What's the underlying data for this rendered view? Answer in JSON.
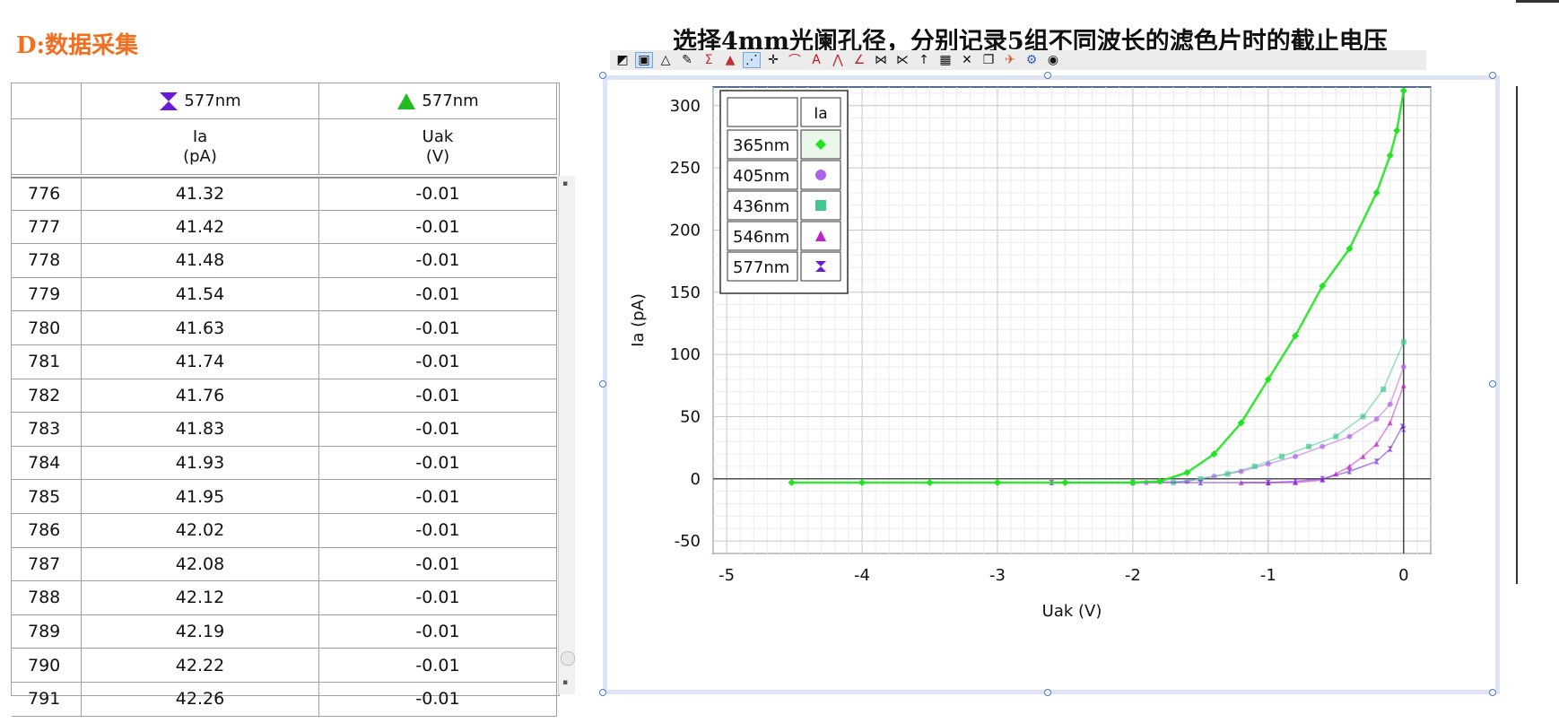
{
  "section_title": "D:数据采集",
  "page_heading": "选择4mm光阑孔径，分别记录5组不同波长的滤色片时的截止电压",
  "table": {
    "headers": [
      {
        "series": "577nm",
        "icon": "hourglass-marker-icon",
        "color": "#6a1bd8",
        "name": "Ia",
        "unit": "(pA)"
      },
      {
        "series": "577nm",
        "icon": "triangle-marker-icon",
        "color": "#22bb22",
        "name": "Uak",
        "unit": "(V)"
      }
    ],
    "rows": [
      [
        "776",
        "41.32",
        "-0.01"
      ],
      [
        "777",
        "41.42",
        "-0.01"
      ],
      [
        "778",
        "41.48",
        "-0.01"
      ],
      [
        "779",
        "41.54",
        "-0.01"
      ],
      [
        "780",
        "41.63",
        "-0.01"
      ],
      [
        "781",
        "41.74",
        "-0.01"
      ],
      [
        "782",
        "41.76",
        "-0.01"
      ],
      [
        "783",
        "41.83",
        "-0.01"
      ],
      [
        "784",
        "41.93",
        "-0.01"
      ],
      [
        "785",
        "41.95",
        "-0.01"
      ],
      [
        "786",
        "42.02",
        "-0.01"
      ],
      [
        "787",
        "42.08",
        "-0.01"
      ],
      [
        "788",
        "42.12",
        "-0.01"
      ],
      [
        "789",
        "42.19",
        "-0.01"
      ],
      [
        "790",
        "42.22",
        "-0.01"
      ],
      [
        "791",
        "42.26",
        "-0.01"
      ]
    ]
  },
  "toolbar_icons": [
    "chart-options-icon",
    "layout-icon",
    "color-icon",
    "pencil-icon",
    "sigma-icon",
    "warning-icon",
    "scatter-icon",
    "crosshair-icon",
    "curve-fit-icon",
    "text-annotation-icon",
    "zigzag-icon",
    "tangent-icon",
    "x-scale-icon",
    "y-scale-icon",
    "up-arrow-icon",
    "grid-icon",
    "delete-icon",
    "copy-icon",
    "pin-icon",
    "gear-icon",
    "eye-icon"
  ],
  "chart_data": {
    "type": "scatter",
    "xlabel": "Uak (V)",
    "ylabel": "Ia (pA)",
    "xlim": [
      -5.1,
      0.2
    ],
    "ylim": [
      -60,
      315
    ],
    "xticks": [
      -5,
      -4,
      -3,
      -2,
      -1,
      0
    ],
    "yticks": [
      -50,
      0,
      50,
      100,
      150,
      200,
      250,
      300
    ],
    "legend": {
      "placement": "top-left",
      "header": "Ia"
    },
    "series": [
      {
        "name": "365nm",
        "color": "#1ee61e",
        "marker": "diamond",
        "x": [
          -4.52,
          -4.0,
          -3.5,
          -3.0,
          -2.5,
          -2.0,
          -1.8,
          -1.6,
          -1.4,
          -1.2,
          -1.0,
          -0.8,
          -0.6,
          -0.4,
          -0.2,
          -0.1,
          -0.05,
          0.0
        ],
        "y": [
          -3,
          -3,
          -3,
          -3,
          -3,
          -3,
          -2,
          5,
          20,
          45,
          80,
          115,
          155,
          185,
          230,
          260,
          280,
          312
        ]
      },
      {
        "name": "405nm",
        "color": "#b060e8",
        "marker": "circle",
        "x": [
          -1.9,
          -1.6,
          -1.4,
          -1.2,
          -1.0,
          -0.8,
          -0.6,
          -0.4,
          -0.2,
          -0.1,
          0.0
        ],
        "y": [
          -3,
          -2,
          2,
          6,
          12,
          18,
          26,
          34,
          48,
          60,
          90
        ]
      },
      {
        "name": "436nm",
        "color": "#40c890",
        "marker": "square",
        "x": [
          -1.7,
          -1.5,
          -1.3,
          -1.1,
          -0.9,
          -0.7,
          -0.5,
          -0.3,
          -0.15,
          0.0
        ],
        "y": [
          -3,
          0,
          4,
          10,
          18,
          26,
          34,
          50,
          72,
          110
        ]
      },
      {
        "name": "546nm",
        "color": "#c020c8",
        "marker": "triangle",
        "x": [
          -1.2,
          -1.0,
          -0.8,
          -0.6,
          -0.5,
          -0.4,
          -0.3,
          -0.2,
          -0.1,
          0.0
        ],
        "y": [
          -3,
          -3,
          -3,
          -1,
          4,
          10,
          18,
          28,
          45,
          75
        ]
      },
      {
        "name": "577nm",
        "color": "#6a1bd8",
        "marker": "hourglass",
        "x": [
          -2.6,
          -2.0,
          -1.5,
          -1.0,
          -0.8,
          -0.6,
          -0.4,
          -0.2,
          -0.1,
          -0.01,
          0.0
        ],
        "y": [
          -3,
          -3,
          -3,
          -3,
          -2,
          0,
          6,
          14,
          24,
          42,
          40
        ]
      }
    ]
  }
}
